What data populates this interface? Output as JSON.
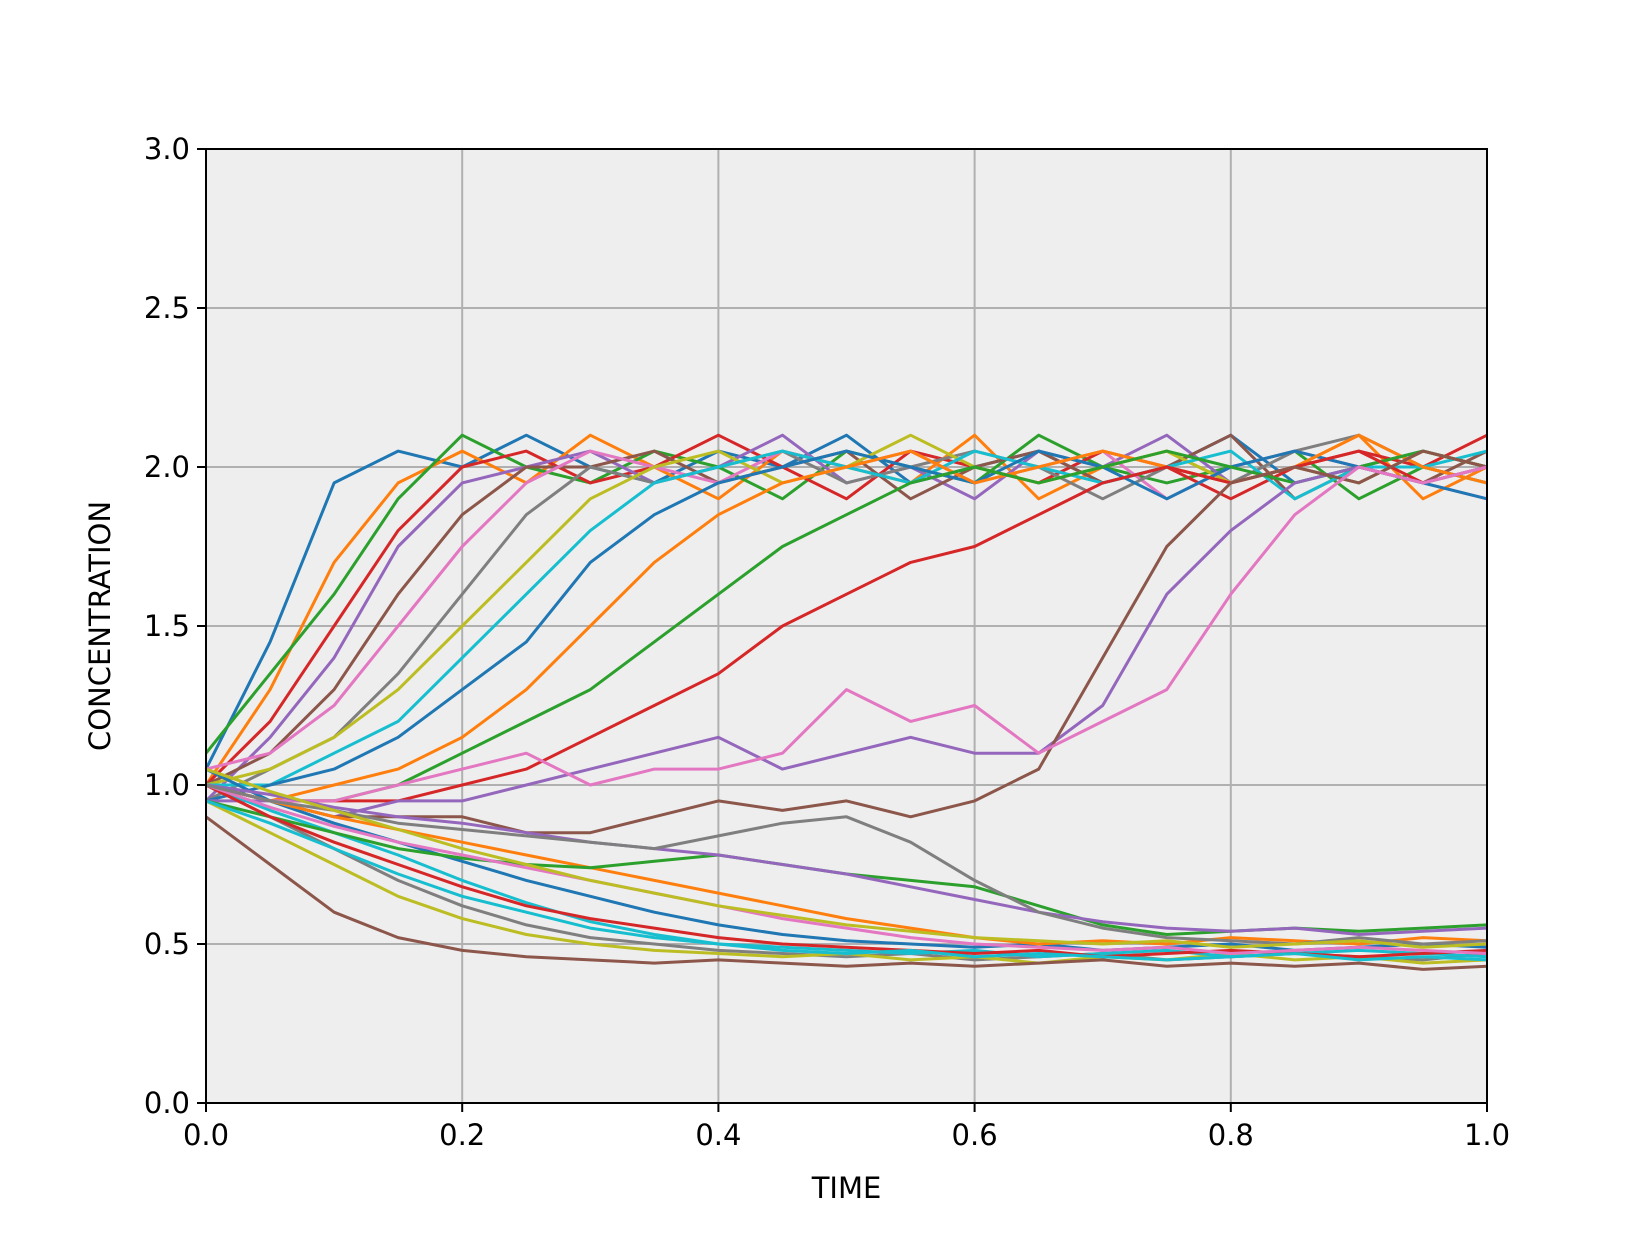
{
  "chart_data": {
    "type": "line",
    "title": "",
    "xlabel": "TIME",
    "ylabel": "CONCENTRATION",
    "xlim": [
      0.0,
      1.0
    ],
    "ylim": [
      0.0,
      3.0
    ],
    "x_ticks": [
      "0.0",
      "0.2",
      "0.4",
      "0.6",
      "0.8",
      "1.0"
    ],
    "y_ticks": [
      "0.0",
      "0.5",
      "1.0",
      "1.5",
      "2.0",
      "2.5",
      "3.0"
    ],
    "grid": true,
    "legend": "none",
    "background_color": "#eeeeee",
    "grid_color": "#b0b0b0",
    "series_colors": [
      "#1f77b4",
      "#ff7f0e",
      "#2ca02c",
      "#d62728",
      "#9467bd",
      "#8c564b",
      "#e377c2",
      "#7f7f7f",
      "#bcbd22",
      "#17becf"
    ],
    "x": [
      0.0,
      0.05,
      0.1,
      0.15,
      0.2,
      0.25,
      0.3,
      0.35,
      0.4,
      0.45,
      0.5,
      0.55,
      0.6,
      0.65,
      0.7,
      0.75,
      0.8,
      0.85,
      0.9,
      0.95,
      1.0
    ],
    "series": [
      {
        "values": [
          1.05,
          1.45,
          1.95,
          2.05,
          2.0,
          2.1,
          2.0,
          1.95,
          2.05,
          2.0,
          2.1,
          1.95,
          2.0,
          2.05,
          1.95,
          2.0,
          2.1,
          1.95,
          2.0,
          2.05,
          2.0
        ]
      },
      {
        "values": [
          1.0,
          1.3,
          1.7,
          1.95,
          2.05,
          1.95,
          2.1,
          2.0,
          1.9,
          2.05,
          2.0,
          1.95,
          2.1,
          1.9,
          2.0,
          2.05,
          1.95,
          2.0,
          2.1,
          1.9,
          2.0
        ]
      },
      {
        "values": [
          1.1,
          1.35,
          1.6,
          1.9,
          2.1,
          2.0,
          1.95,
          2.05,
          2.0,
          1.9,
          2.05,
          2.0,
          1.95,
          2.1,
          2.0,
          1.95,
          2.0,
          2.05,
          1.9,
          2.0,
          1.95
        ]
      },
      {
        "values": [
          1.0,
          1.2,
          1.5,
          1.8,
          2.0,
          2.05,
          1.95,
          2.0,
          2.1,
          2.0,
          1.9,
          2.05,
          2.0,
          1.95,
          2.05,
          2.0,
          1.9,
          2.0,
          2.05,
          2.0,
          2.1
        ]
      },
      {
        "values": [
          0.95,
          1.15,
          1.4,
          1.75,
          1.95,
          2.0,
          2.05,
          1.95,
          2.0,
          2.1,
          1.95,
          2.0,
          1.9,
          2.05,
          2.0,
          2.1,
          1.95,
          2.0,
          1.95,
          2.05,
          2.0
        ]
      },
      {
        "values": [
          1.0,
          1.1,
          1.3,
          1.6,
          1.85,
          2.0,
          2.0,
          2.05,
          1.95,
          2.0,
          2.05,
          1.9,
          2.0,
          2.05,
          1.95,
          2.0,
          2.1,
          1.9,
          2.0,
          1.95,
          2.05
        ]
      },
      {
        "values": [
          1.05,
          1.1,
          1.25,
          1.5,
          1.75,
          1.95,
          2.05,
          2.0,
          1.95,
          2.05,
          2.0,
          2.05,
          1.95,
          2.0,
          2.05,
          1.9,
          2.0,
          2.05,
          2.0,
          1.95,
          1.9
        ]
      },
      {
        "values": [
          0.95,
          1.05,
          1.15,
          1.35,
          1.6,
          1.85,
          2.0,
          1.95,
          2.0,
          2.05,
          1.95,
          2.0,
          2.05,
          2.0,
          1.9,
          2.0,
          1.95,
          2.05,
          2.1,
          2.0,
          1.95
        ]
      },
      {
        "values": [
          1.0,
          1.05,
          1.15,
          1.3,
          1.5,
          1.7,
          1.9,
          2.0,
          2.05,
          1.95,
          2.0,
          2.1,
          2.0,
          1.95,
          2.0,
          2.05,
          1.95,
          2.0,
          1.95,
          2.05,
          2.0
        ]
      },
      {
        "values": [
          1.0,
          1.0,
          1.1,
          1.2,
          1.4,
          1.6,
          1.8,
          1.95,
          2.0,
          2.05,
          2.0,
          1.95,
          2.05,
          2.0,
          1.95,
          2.0,
          2.05,
          1.9,
          2.0,
          2.0,
          2.05
        ]
      },
      {
        "values": [
          0.95,
          1.0,
          1.05,
          1.15,
          1.3,
          1.45,
          1.7,
          1.85,
          1.95,
          2.0,
          2.05,
          2.0,
          1.95,
          2.05,
          2.0,
          1.9,
          2.0,
          2.05,
          2.0,
          1.95,
          1.9
        ]
      },
      {
        "values": [
          1.0,
          0.95,
          1.0,
          1.05,
          1.15,
          1.3,
          1.5,
          1.7,
          1.85,
          1.95,
          2.0,
          2.05,
          1.95,
          2.0,
          2.05,
          2.0,
          1.95,
          2.0,
          2.1,
          2.0,
          1.95
        ]
      },
      {
        "values": [
          1.0,
          0.95,
          0.95,
          1.0,
          1.1,
          1.2,
          1.3,
          1.45,
          1.6,
          1.75,
          1.85,
          1.95,
          2.0,
          1.95,
          2.0,
          2.05,
          2.0,
          1.95,
          2.0,
          2.05,
          2.0
        ]
      },
      {
        "values": [
          1.0,
          0.95,
          0.95,
          0.95,
          1.0,
          1.05,
          1.15,
          1.25,
          1.35,
          1.5,
          1.6,
          1.7,
          1.75,
          1.85,
          1.95,
          2.0,
          1.95,
          2.0,
          2.05,
          1.95,
          2.0
        ]
      },
      {
        "values": [
          0.95,
          0.95,
          0.9,
          0.95,
          0.95,
          1.0,
          1.05,
          1.1,
          1.15,
          1.05,
          1.1,
          1.15,
          1.1,
          1.1,
          1.25,
          1.6,
          1.8,
          1.95,
          2.0,
          1.95,
          2.0
        ]
      },
      {
        "values": [
          1.0,
          0.95,
          0.9,
          0.9,
          0.9,
          0.85,
          0.85,
          0.9,
          0.95,
          0.92,
          0.95,
          0.9,
          0.95,
          1.05,
          1.4,
          1.75,
          1.95,
          2.0,
          1.95,
          2.05,
          2.0
        ]
      },
      {
        "values": [
          1.0,
          0.95,
          0.95,
          1.0,
          1.05,
          1.1,
          1.0,
          1.05,
          1.05,
          1.1,
          1.3,
          1.2,
          1.25,
          1.1,
          1.2,
          1.3,
          1.6,
          1.85,
          2.0,
          1.95,
          2.0
        ]
      },
      {
        "values": [
          1.0,
          0.9,
          0.8,
          0.7,
          0.62,
          0.56,
          0.52,
          0.5,
          0.48,
          0.47,
          0.46,
          0.47,
          0.45,
          0.46,
          0.47,
          0.45,
          0.46,
          0.47,
          0.46,
          0.45,
          0.47
        ]
      },
      {
        "values": [
          0.95,
          0.85,
          0.75,
          0.65,
          0.58,
          0.53,
          0.5,
          0.48,
          0.47,
          0.46,
          0.47,
          0.45,
          0.46,
          0.44,
          0.46,
          0.45,
          0.47,
          0.45,
          0.46,
          0.44,
          0.45
        ]
      },
      {
        "values": [
          1.0,
          0.92,
          0.85,
          0.78,
          0.7,
          0.63,
          0.57,
          0.53,
          0.5,
          0.49,
          0.48,
          0.47,
          0.48,
          0.46,
          0.47,
          0.48,
          0.46,
          0.47,
          0.48,
          0.47,
          0.46
        ]
      },
      {
        "values": [
          1.05,
          0.95,
          0.88,
          0.82,
          0.76,
          0.7,
          0.65,
          0.6,
          0.56,
          0.53,
          0.51,
          0.5,
          0.49,
          0.5,
          0.48,
          0.49,
          0.5,
          0.48,
          0.49,
          0.5,
          0.49
        ]
      },
      {
        "values": [
          1.0,
          0.95,
          0.9,
          0.86,
          0.82,
          0.78,
          0.74,
          0.7,
          0.66,
          0.62,
          0.58,
          0.55,
          0.52,
          0.5,
          0.51,
          0.5,
          0.52,
          0.51,
          0.5,
          0.52,
          0.51
        ]
      },
      {
        "values": [
          0.95,
          0.9,
          0.85,
          0.8,
          0.77,
          0.75,
          0.74,
          0.76,
          0.78,
          0.75,
          0.72,
          0.7,
          0.68,
          0.62,
          0.56,
          0.53,
          0.54,
          0.55,
          0.54,
          0.55,
          0.56
        ]
      },
      {
        "values": [
          1.0,
          0.9,
          0.82,
          0.75,
          0.68,
          0.62,
          0.58,
          0.55,
          0.52,
          0.5,
          0.49,
          0.48,
          0.47,
          0.48,
          0.46,
          0.47,
          0.48,
          0.47,
          0.46,
          0.47,
          0.48
        ]
      },
      {
        "values": [
          1.0,
          0.97,
          0.93,
          0.9,
          0.88,
          0.85,
          0.82,
          0.8,
          0.78,
          0.75,
          0.72,
          0.68,
          0.64,
          0.6,
          0.57,
          0.55,
          0.54,
          0.55,
          0.53,
          0.54,
          0.55
        ]
      },
      {
        "values": [
          0.9,
          0.75,
          0.6,
          0.52,
          0.48,
          0.46,
          0.45,
          0.44,
          0.45,
          0.44,
          0.43,
          0.44,
          0.43,
          0.44,
          0.45,
          0.43,
          0.44,
          0.43,
          0.44,
          0.42,
          0.43
        ]
      },
      {
        "values": [
          1.0,
          0.93,
          0.87,
          0.82,
          0.78,
          0.74,
          0.7,
          0.66,
          0.62,
          0.58,
          0.55,
          0.52,
          0.5,
          0.49,
          0.48,
          0.49,
          0.47,
          0.48,
          0.49,
          0.48,
          0.47
        ]
      },
      {
        "values": [
          1.0,
          0.95,
          0.92,
          0.88,
          0.86,
          0.84,
          0.82,
          0.8,
          0.84,
          0.88,
          0.9,
          0.82,
          0.7,
          0.6,
          0.55,
          0.52,
          0.51,
          0.5,
          0.52,
          0.5,
          0.51
        ]
      },
      {
        "values": [
          1.05,
          0.98,
          0.92,
          0.86,
          0.8,
          0.75,
          0.7,
          0.66,
          0.62,
          0.59,
          0.56,
          0.54,
          0.52,
          0.51,
          0.5,
          0.51,
          0.49,
          0.5,
          0.51,
          0.49,
          0.5
        ]
      },
      {
        "values": [
          0.95,
          0.88,
          0.8,
          0.72,
          0.65,
          0.6,
          0.55,
          0.52,
          0.5,
          0.48,
          0.47,
          0.48,
          0.46,
          0.47,
          0.46,
          0.45,
          0.46,
          0.47,
          0.45,
          0.46,
          0.45
        ]
      }
    ]
  }
}
